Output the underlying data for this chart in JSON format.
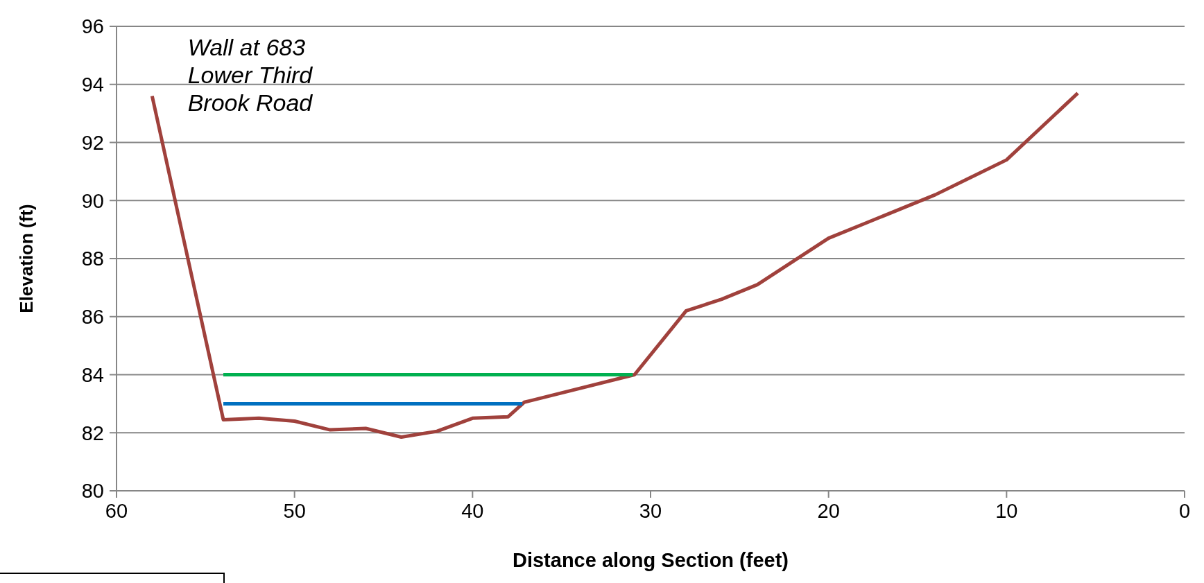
{
  "chart_data": {
    "type": "line",
    "xlabel": "Distance along Section (feet)",
    "ylabel": "Elevation (ft)",
    "annotations": [
      "Wall at 683",
      "Lower Third",
      "Brook Road"
    ],
    "xlim": [
      60,
      0
    ],
    "xticks": [
      60,
      50,
      40,
      30,
      20,
      10,
      0
    ],
    "ylim": [
      80,
      96
    ],
    "yticks": [
      80,
      82,
      84,
      86,
      88,
      90,
      92,
      94,
      96
    ],
    "grid": "y",
    "marker": "none",
    "line_style": "solid",
    "series": [
      {
        "color": "#a0413c",
        "x": [
          58,
          54,
          52,
          50,
          48,
          46,
          44,
          42,
          40,
          38,
          37.1,
          30.9,
          28,
          26,
          24,
          20,
          18,
          14,
          10,
          6
        ],
        "values": [
          93.6,
          82.45,
          82.5,
          82.4,
          82.1,
          82.15,
          81.85,
          82.05,
          82.5,
          82.55,
          83.05,
          84,
          86.2,
          86.6,
          87.1,
          88.7,
          89.2,
          90.2,
          91.4,
          93.7
        ]
      },
      {
        "color": "#00b050",
        "x": [
          54,
          31
        ],
        "values": [
          84,
          84
        ]
      },
      {
        "color": "#0070c0",
        "x": [
          54,
          37.2
        ],
        "values": [
          83,
          83
        ]
      }
    ]
  }
}
